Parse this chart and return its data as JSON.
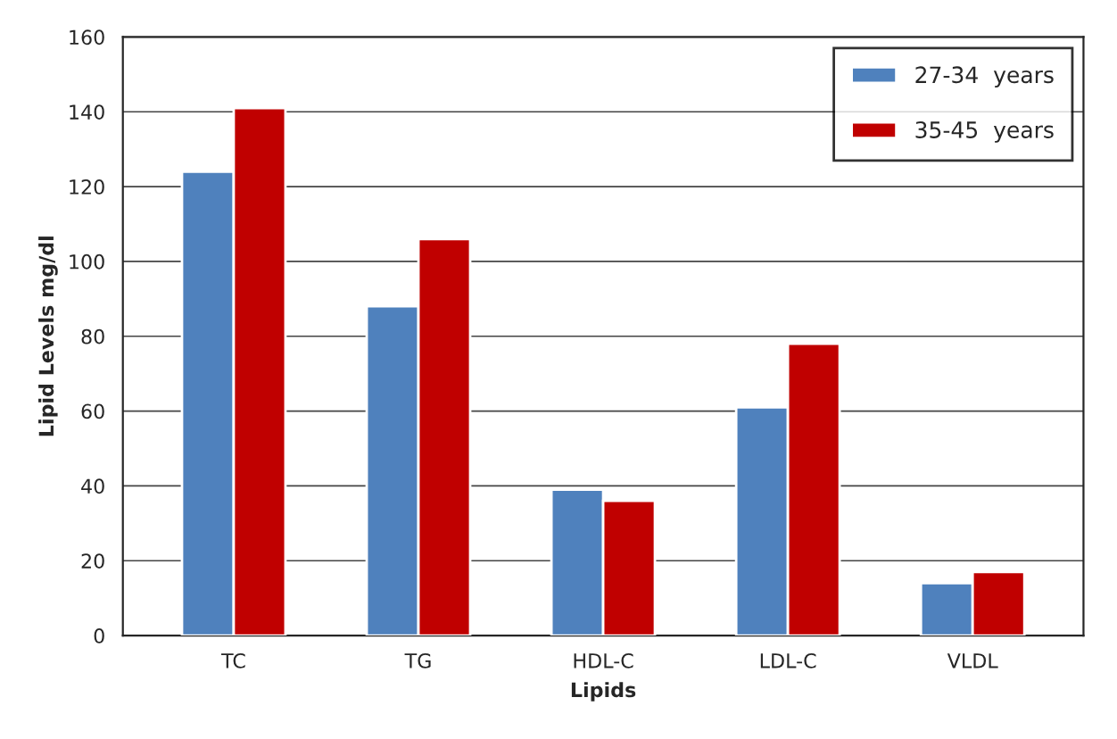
{
  "chart_data": {
    "type": "bar",
    "xlabel": "Lipids",
    "ylabel": "Lipid Levels mg/dl",
    "categories": [
      "TC",
      "TG",
      "HDL-C",
      "LDL-C",
      "VLDL"
    ],
    "series": [
      {
        "name": "27-34  years",
        "color": "#4f81bd",
        "values": [
          124,
          88,
          39,
          61,
          14
        ]
      },
      {
        "name": "35-45  years",
        "color": "#c00000",
        "values": [
          141,
          106,
          36,
          78,
          17
        ]
      }
    ],
    "ylim": [
      0,
      160
    ],
    "yticks": [
      0,
      20,
      40,
      60,
      80,
      100,
      120,
      140,
      160
    ],
    "grid": "y",
    "legend": "top right"
  }
}
